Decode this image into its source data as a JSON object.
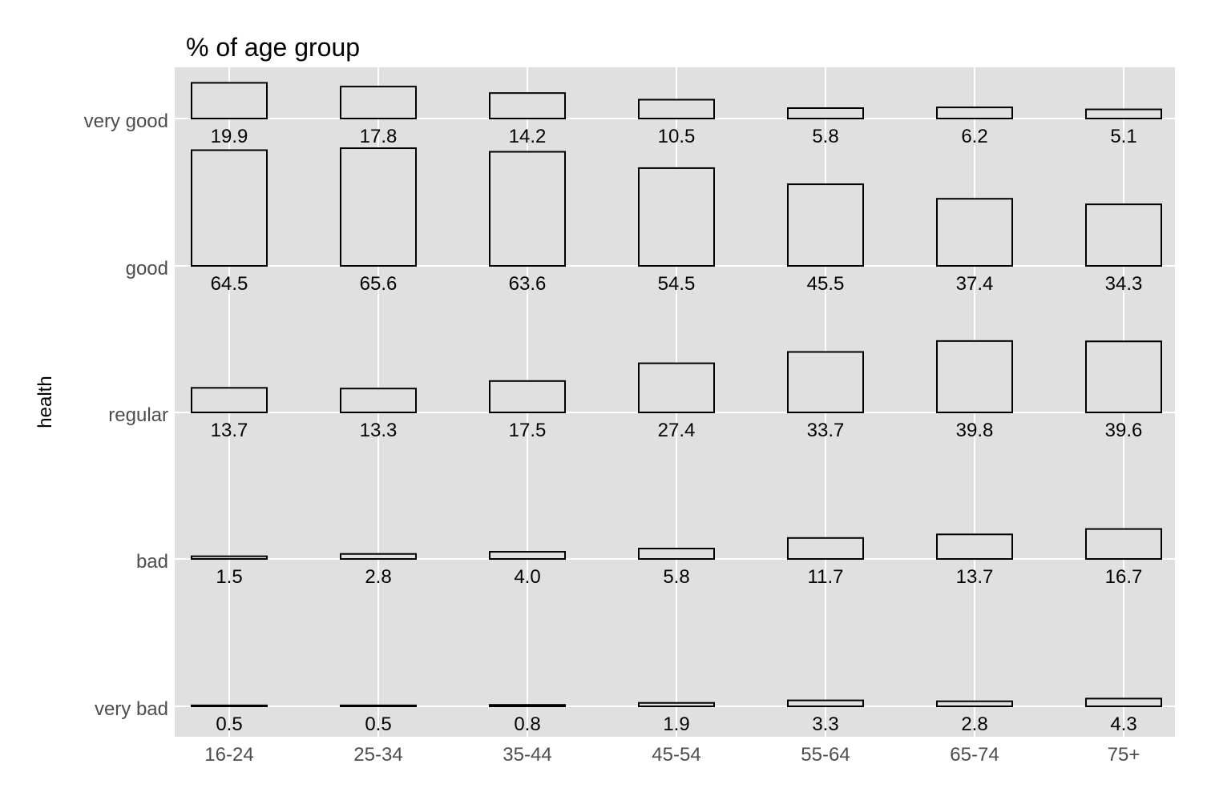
{
  "chart_data": {
    "type": "bar",
    "title": "% of age group",
    "ylabel": "health",
    "xlabel": "",
    "categories": [
      "16-24",
      "25-34",
      "35-44",
      "45-54",
      "55-64",
      "65-74",
      "75+"
    ],
    "rows": [
      "very good",
      "good",
      "regular",
      "bad",
      "very bad"
    ],
    "series": [
      {
        "name": "very good",
        "values": [
          19.9,
          17.8,
          14.2,
          10.5,
          5.8,
          6.2,
          5.1
        ]
      },
      {
        "name": "good",
        "values": [
          64.5,
          65.6,
          63.6,
          54.5,
          45.5,
          37.4,
          34.3
        ]
      },
      {
        "name": "regular",
        "values": [
          13.7,
          13.3,
          17.5,
          27.4,
          33.7,
          39.8,
          39.6
        ]
      },
      {
        "name": "bad",
        "values": [
          1.5,
          2.8,
          4.0,
          5.8,
          11.7,
          13.7,
          16.7
        ]
      },
      {
        "name": "very bad",
        "values": [
          0.5,
          0.5,
          0.8,
          1.9,
          3.3,
          2.8,
          4.3
        ]
      }
    ],
    "value_labels": [
      [
        "19.9",
        "17.8",
        "14.2",
        "10.5",
        "5.8",
        "6.2",
        "5.1"
      ],
      [
        "64.5",
        "65.6",
        "63.6",
        "54.5",
        "45.5",
        "37.4",
        "34.3"
      ],
      [
        "13.7",
        "13.3",
        "17.5",
        "27.4",
        "33.7",
        "39.8",
        "39.6"
      ],
      [
        "1.5",
        "2.8",
        "4.0",
        "5.8",
        "11.7",
        "13.7",
        "16.7"
      ],
      [
        "0.5",
        "0.5",
        "0.8",
        "1.9",
        "3.3",
        "2.8",
        "4.3"
      ]
    ],
    "grid": true,
    "legend": "none",
    "colors": {
      "panel_background": "#e0e0e0",
      "grid": "#ffffff",
      "bar_fill": "#e0e0e0",
      "bar_stroke": "#000000",
      "tick_text": "#4d4d4d",
      "text": "#000000"
    }
  }
}
